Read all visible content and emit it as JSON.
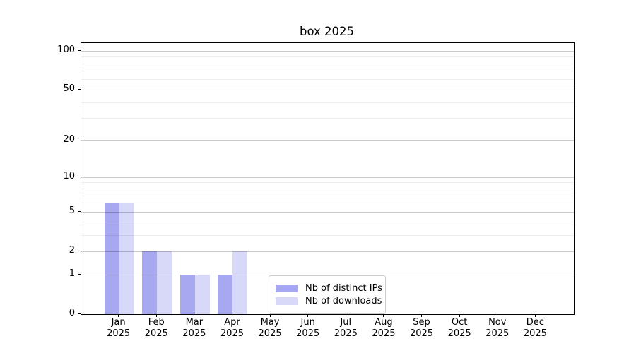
{
  "chart_data": {
    "type": "bar",
    "title": "box 2025",
    "categories": [
      "Jan",
      "Feb",
      "Mar",
      "Apr",
      "May",
      "Jun",
      "Jul",
      "Aug",
      "Sep",
      "Oct",
      "Nov",
      "Dec"
    ],
    "xtick_year": "2025",
    "series": [
      {
        "name": "Nb of distinct IPs",
        "color": "#a8a8f0",
        "values": [
          6,
          2,
          1,
          1,
          0,
          0,
          0,
          0,
          0,
          0,
          0,
          0
        ]
      },
      {
        "name": "Nb of downloads",
        "color": "#d8d8f8",
        "values": [
          6,
          2,
          1,
          2,
          0,
          0,
          0,
          0,
          0,
          0,
          0,
          0
        ]
      }
    ],
    "xlabel": "",
    "ylabel": "",
    "yscale": "log1p",
    "ylim": [
      0,
      115
    ],
    "yticks_major": [
      0,
      1,
      2,
      5,
      10,
      20,
      50,
      100
    ],
    "yticks_minor": [
      3,
      4,
      6,
      7,
      8,
      9,
      30,
      40,
      60,
      70,
      80,
      90
    ],
    "grid": "both",
    "legend_position": "lower center"
  },
  "colors": {
    "background": "#ffffff",
    "spine": "#000000",
    "text": "#000000",
    "grid_major": "rgba(0,0,0,0.21)",
    "grid_minor": "rgba(0,0,0,0.07)",
    "legend_border": "#cccccc"
  }
}
